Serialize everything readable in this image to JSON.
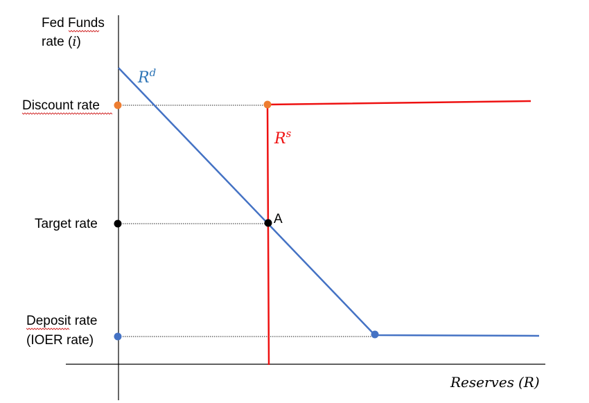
{
  "axes": {
    "y_title_line1": "Fed Funds",
    "y_title_line2_prefix": "rate (",
    "y_title_line2_var": "i",
    "y_title_line2_suffix": ")",
    "x_title_word": "Reserves",
    "x_title_var": "(R)"
  },
  "rate_labels": {
    "discount": "Discount rate",
    "target": "Target rate",
    "deposit_line1": "Deposit rate",
    "deposit_line2": "(IOER rate)"
  },
  "curves": {
    "demand_base": "R",
    "demand_sup": "d",
    "supply_base": "R",
    "supply_sup": "s",
    "equilibrium": "A"
  },
  "colors": {
    "demand": "#4472C4",
    "supply": "#EE1111",
    "discount_dot": "#ED7D31",
    "target_dot": "#000000",
    "deposit_dot": "#4472C4",
    "equilibrium_label": "#C00000",
    "axis": "#000000"
  }
}
